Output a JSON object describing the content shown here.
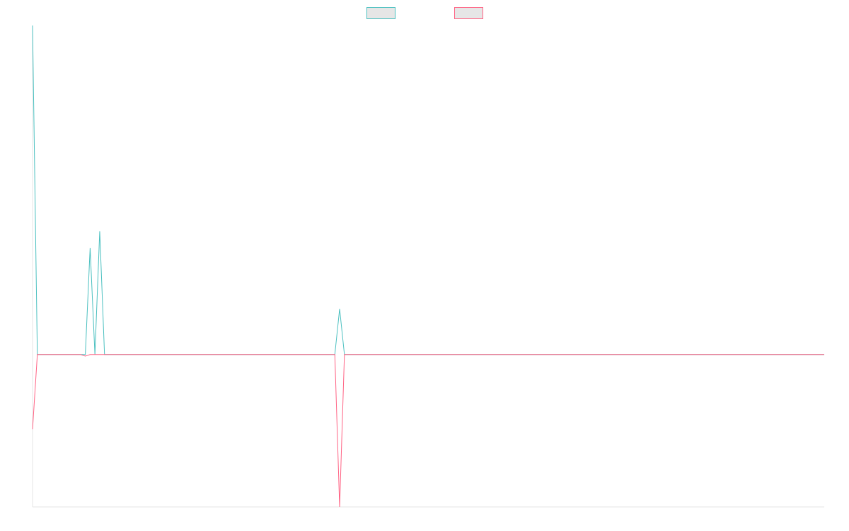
{
  "chart_data": {
    "type": "line",
    "title": "",
    "xlabel": "",
    "ylabel": "",
    "grid": false,
    "legend": "top-center",
    "x": [
      0,
      1,
      2,
      3,
      4,
      5,
      6,
      7,
      8,
      9,
      10,
      11,
      12,
      13,
      14,
      15,
      16,
      17,
      18,
      19,
      20,
      21,
      22,
      23,
      24,
      25,
      26,
      27,
      28,
      29,
      30,
      31,
      32,
      33,
      34,
      35,
      36,
      37,
      38,
      39,
      40,
      41,
      42,
      43,
      44,
      45,
      46,
      47,
      48,
      49,
      50,
      51,
      52,
      53,
      54,
      55,
      56,
      57,
      58,
      59,
      60,
      61,
      62,
      63,
      64,
      65,
      66,
      67,
      68,
      69,
      70,
      71,
      72,
      73,
      74,
      75,
      76,
      77,
      78,
      79,
      80,
      81,
      82,
      83,
      84,
      85,
      86,
      87,
      88,
      89,
      90,
      91,
      92,
      93,
      94,
      95,
      96,
      97,
      98,
      99,
      100,
      101,
      102,
      103,
      104,
      105,
      106,
      107,
      108,
      109,
      110,
      111,
      112,
      113,
      114,
      115,
      116,
      117,
      118,
      119,
      120,
      121,
      122,
      123,
      124,
      125,
      126,
      127,
      128,
      129,
      130,
      131,
      132,
      133,
      134,
      135,
      136,
      137,
      138,
      139,
      140,
      141,
      142,
      143,
      144,
      145,
      146,
      147,
      148,
      149,
      150,
      151,
      152,
      153,
      154,
      155,
      156,
      157,
      158,
      159,
      160,
      161,
      162,
      163,
      164,
      165
    ],
    "xlim": [
      0,
      165
    ],
    "ylim": [
      -100,
      216
    ],
    "series": [
      {
        "color": "#4bc0c0",
        "values": [
          216,
          0,
          0,
          0,
          0,
          0,
          0,
          0,
          0,
          0,
          0,
          0,
          70,
          0,
          81,
          0,
          0,
          0,
          0,
          0,
          0,
          0,
          0,
          0,
          0,
          0,
          0,
          0,
          0,
          0,
          0,
          0,
          0,
          0,
          0,
          0,
          0,
          0,
          0,
          0,
          0,
          0,
          0,
          0,
          0,
          0,
          0,
          0,
          0,
          0,
          0,
          0,
          0,
          0,
          0,
          0,
          0,
          0,
          0,
          0,
          0,
          0,
          0,
          0,
          30,
          0,
          0,
          0,
          0,
          0,
          0,
          0,
          0,
          0,
          0,
          0,
          0,
          0,
          0,
          0,
          0,
          0,
          0,
          0,
          0,
          0,
          0,
          0,
          0,
          0,
          0,
          0,
          0,
          0,
          0,
          0,
          0,
          0,
          0,
          0,
          0,
          0,
          0,
          0,
          0,
          0,
          0,
          0,
          0,
          0,
          0,
          0,
          0,
          0,
          0,
          0,
          0,
          0,
          0,
          0,
          0,
          0,
          0,
          0,
          0,
          0,
          0,
          0,
          0,
          0,
          0,
          0,
          0,
          0,
          0,
          0,
          0,
          0,
          0,
          0,
          0,
          0,
          0,
          0,
          0,
          0,
          0,
          0,
          0,
          0,
          0,
          0,
          0,
          0,
          0,
          0,
          0,
          0,
          0,
          0,
          0,
          0,
          0,
          0,
          0,
          0
        ]
      },
      {
        "color": "#ff6384",
        "values": [
          -49,
          0,
          0,
          0,
          0,
          0,
          0,
          0,
          0,
          0,
          0,
          -1,
          0,
          0,
          0,
          0,
          0,
          0,
          0,
          0,
          0,
          0,
          0,
          0,
          0,
          0,
          0,
          0,
          0,
          0,
          0,
          0,
          0,
          0,
          0,
          0,
          0,
          0,
          0,
          0,
          0,
          0,
          0,
          0,
          0,
          0,
          0,
          0,
          0,
          0,
          0,
          0,
          0,
          0,
          0,
          0,
          0,
          0,
          0,
          0,
          0,
          0,
          0,
          0,
          -100,
          0,
          0,
          0,
          0,
          0,
          0,
          0,
          0,
          0,
          0,
          0,
          0,
          0,
          0,
          0,
          0,
          0,
          0,
          0,
          0,
          0,
          0,
          0,
          0,
          0,
          0,
          0,
          0,
          0,
          0,
          0,
          0,
          0,
          0,
          0,
          0,
          0,
          0,
          0,
          0,
          0,
          0,
          0,
          0,
          0,
          0,
          0,
          0,
          0,
          0,
          0,
          0,
          0,
          0,
          0,
          0,
          0,
          0,
          0,
          0,
          0,
          0,
          0,
          0,
          0,
          0,
          0,
          0,
          0,
          0,
          0,
          0,
          0,
          0,
          0,
          0,
          0,
          0,
          0,
          0,
          0,
          0,
          0,
          0,
          0,
          0,
          0,
          0,
          0,
          0,
          0,
          0,
          0,
          0,
          0,
          0,
          0,
          0,
          0,
          0,
          0
        ]
      }
    ]
  }
}
